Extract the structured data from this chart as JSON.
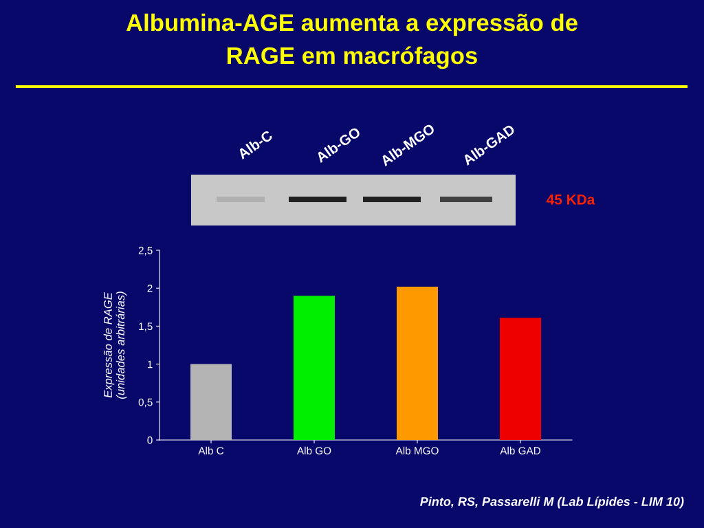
{
  "chart_data": {
    "type": "bar",
    "title": "Albumina-AGE aumenta a expressão de\nRAGE em macrófagos",
    "ylabel": "Expressão de RAGE\n(unidades arbitrárias)",
    "categories": [
      "Alb C",
      "Alb GO",
      "Alb MGO",
      "Alb GAD"
    ],
    "values": [
      1.0,
      1.9,
      2.02,
      1.61
    ],
    "colors": [
      "#b4b4b4",
      "#00ee00",
      "#ff9900",
      "#ee0000"
    ],
    "ylim": [
      0,
      2.5
    ],
    "yticks": [
      0,
      {
        "value": 0.5,
        "label": "0,5"
      },
      1,
      {
        "value": 1.5,
        "label": "1,5"
      },
      2,
      {
        "value": 2.5,
        "label": "2,5"
      }
    ],
    "grid": false,
    "legend": false,
    "annotations": [
      "Alb-C",
      "Alb-GO",
      "Alb-MGO",
      "Alb-GAD",
      "45 KDa",
      "Pinto, RS, Passarelli M (Lab Lípides - LIM 10)"
    ]
  }
}
